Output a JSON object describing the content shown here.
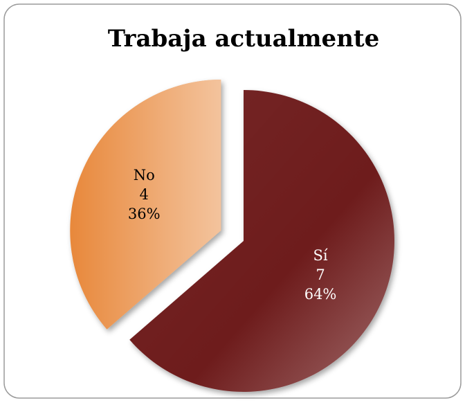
{
  "chart_data": {
    "type": "pie",
    "title": "Trabaja actualmente",
    "categories": [
      "Sí",
      "No"
    ],
    "values": [
      7,
      4
    ],
    "value_labels": [
      "64%",
      "36%"
    ],
    "colors": [
      "#6e1f1f",
      "#e8883a"
    ]
  }
}
